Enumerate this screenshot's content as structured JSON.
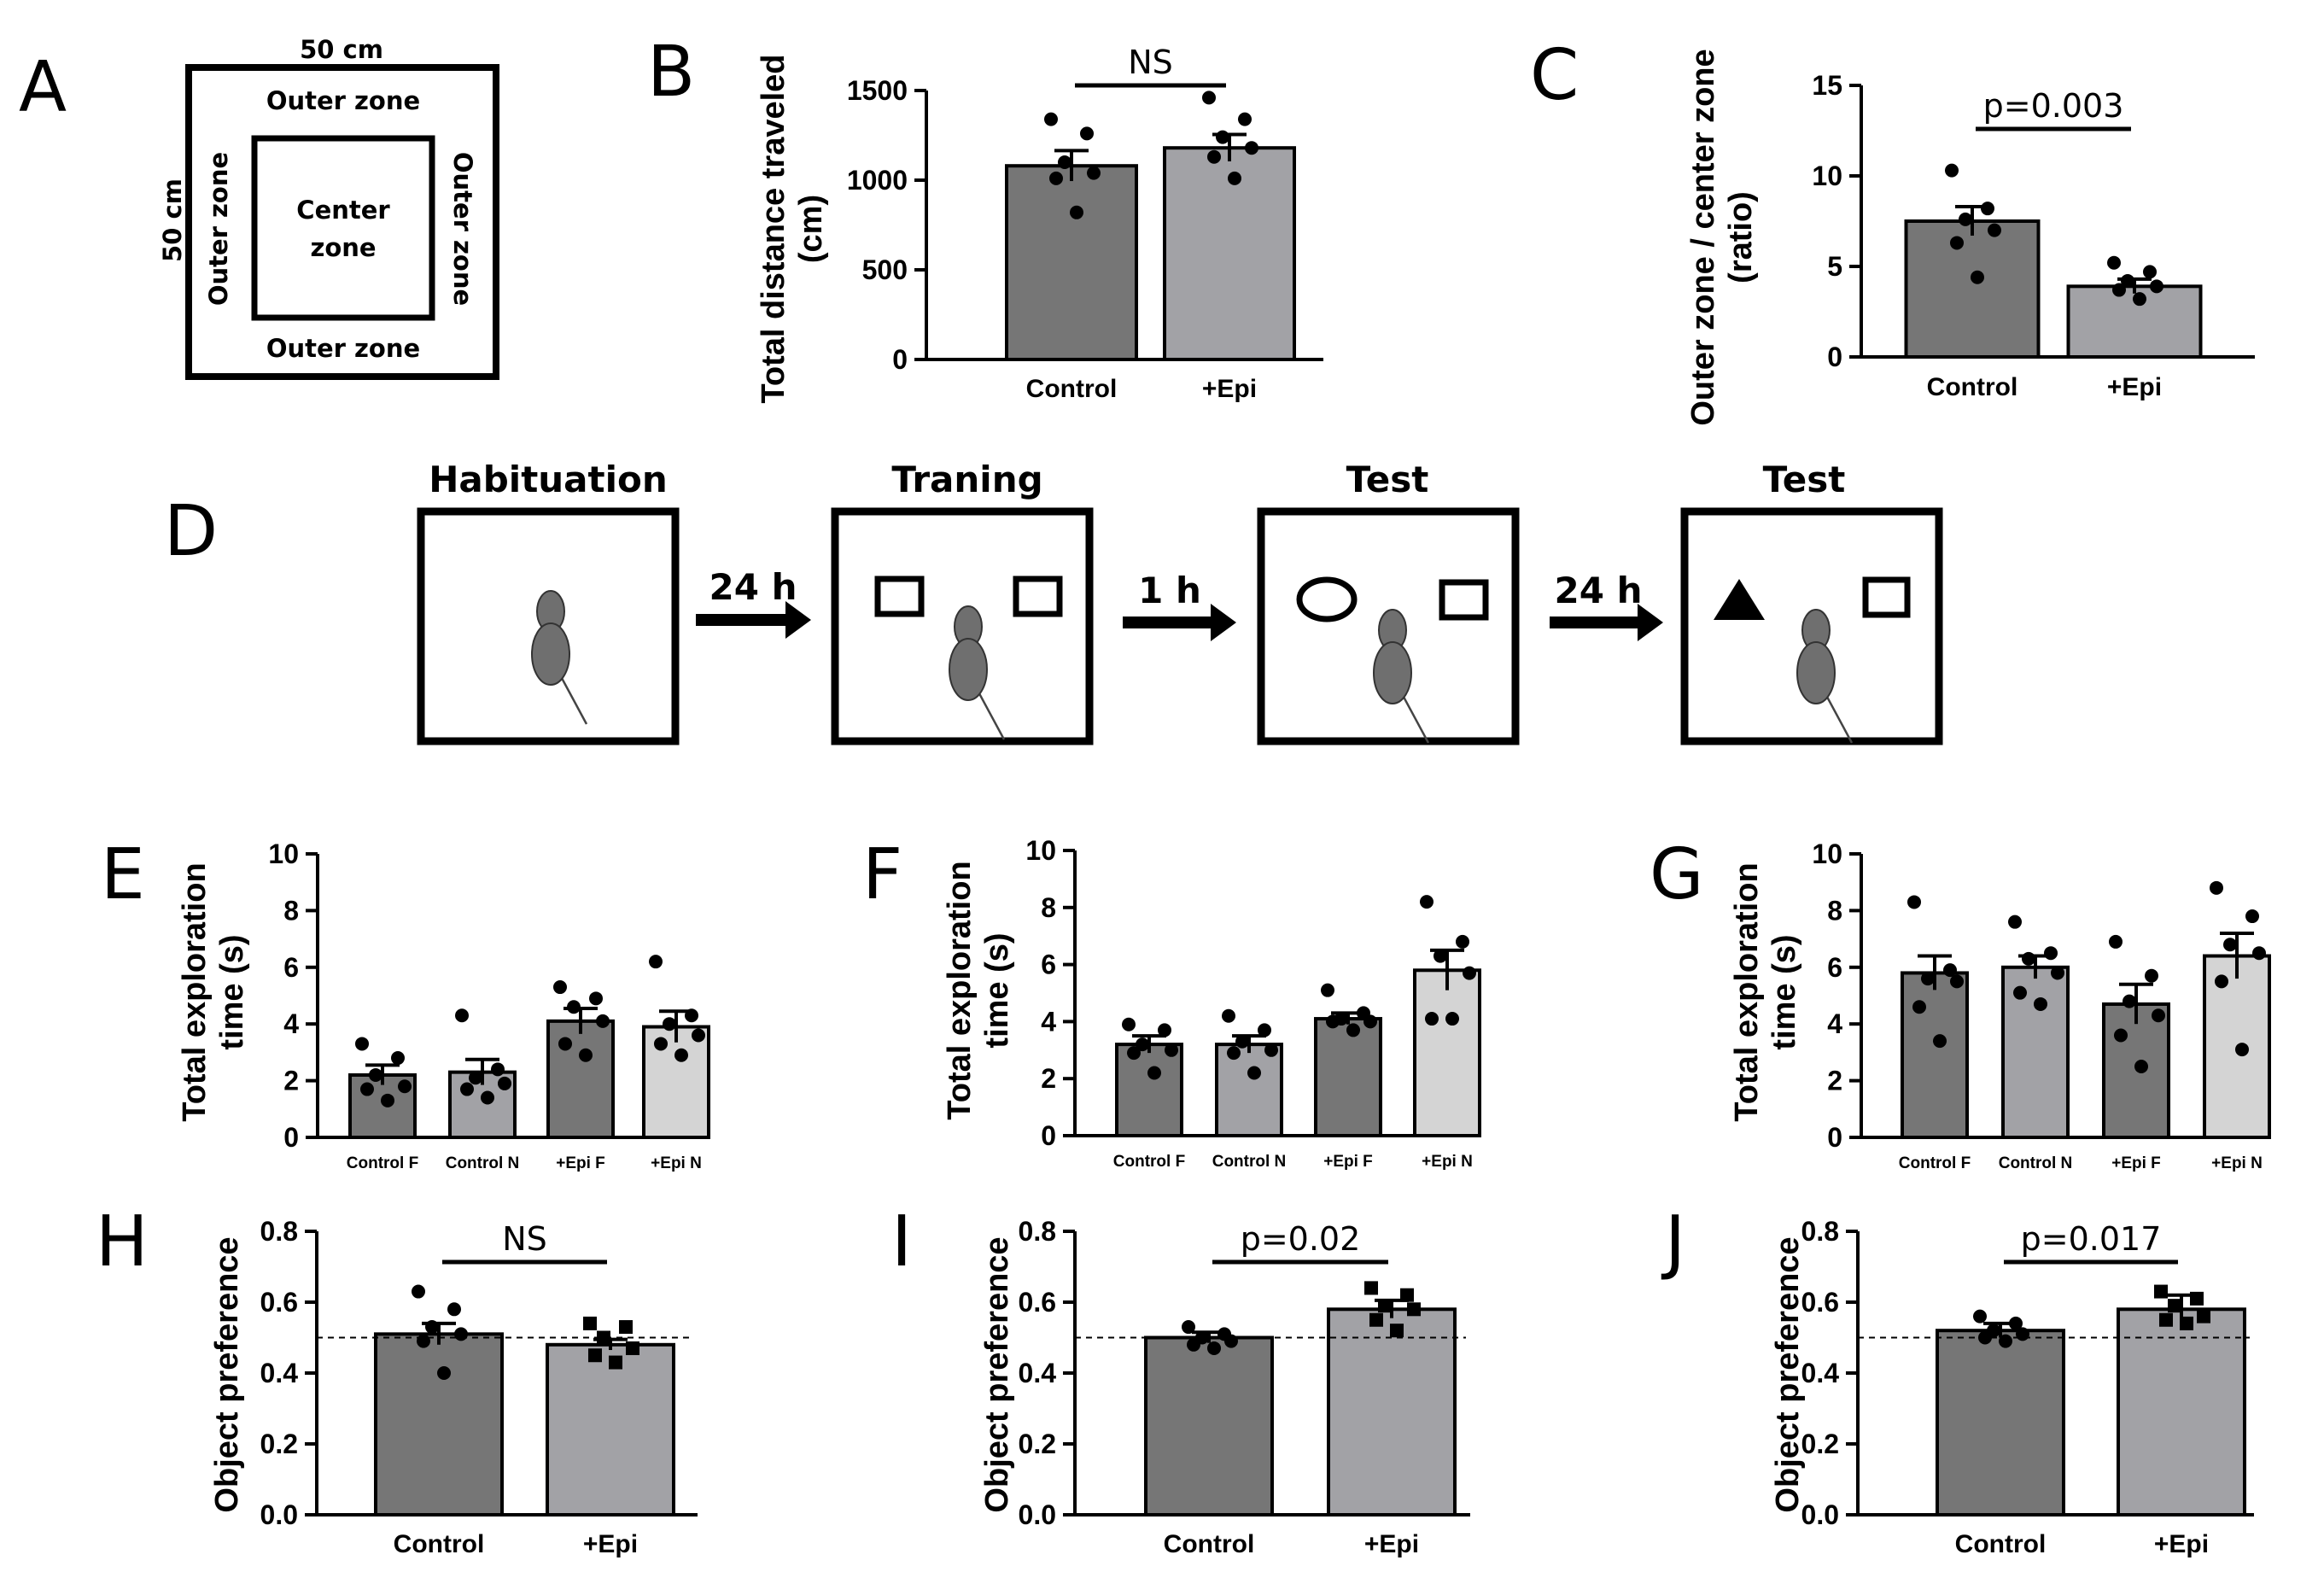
{
  "panel_labels": {
    "A": "A",
    "B": "B",
    "C": "C",
    "D": "D",
    "E": "E",
    "F": "F",
    "G": "G",
    "H": "H",
    "I": "I",
    "J": "J"
  },
  "panel_a": {
    "top_width": "50 cm",
    "side_height": "50 cm",
    "outer_top": "Outer zone",
    "outer_bottom": "Outer zone",
    "outer_left": "Outer zone",
    "outer_right": "Outer zone",
    "center_line1": "Center",
    "center_line2": "zone"
  },
  "panel_d": {
    "stages": [
      "Habituation",
      "Traning",
      "Test",
      "Test"
    ],
    "intervals": [
      "24 h",
      "1 h",
      "24 h"
    ]
  },
  "colors": {
    "dark_bar": "#767676",
    "mid_bar": "#a2a2a6",
    "light_bar": "#d4d4d4",
    "dot": "#000000"
  },
  "chart_data": [
    {
      "id": "B",
      "type": "bar",
      "categories": [
        "Control",
        "+Epi"
      ],
      "values": [
        1080,
        1180
      ],
      "errors": [
        85,
        75
      ],
      "points": [
        [
          1340,
          1260,
          1100,
          1040,
          1010,
          820
        ],
        [
          1460,
          1340,
          1240,
          1180,
          1130,
          1010
        ]
      ],
      "ylabel": "Total distance traveled (cm)",
      "ylim": [
        0,
        1500
      ],
      "yticks": [
        0,
        500,
        1000,
        1500
      ],
      "significance": "NS"
    },
    {
      "id": "C",
      "type": "bar",
      "categories": [
        "Control",
        "+Epi"
      ],
      "values": [
        7.5,
        3.9
      ],
      "errors": [
        0.8,
        0.4
      ],
      "points": [
        [
          10.3,
          8.2,
          7.6,
          7.0,
          6.3,
          4.4
        ],
        [
          5.2,
          4.7,
          4.2,
          3.9,
          3.7,
          3.2
        ]
      ],
      "ylabel": "Outer zone / center zone (ratio)",
      "ylim": [
        0,
        15
      ],
      "yticks": [
        0,
        5,
        10,
        15
      ],
      "significance": "p=0.003"
    },
    {
      "id": "E",
      "type": "bar",
      "categories": [
        "Control F",
        "Control N",
        "+Epi F",
        "+Epi N"
      ],
      "values": [
        2.2,
        2.3,
        4.1,
        3.9
      ],
      "errors": [
        0.35,
        0.45,
        0.45,
        0.55
      ],
      "points": [
        [
          3.3,
          2.8,
          2.2,
          1.8,
          1.7,
          1.3
        ],
        [
          4.3,
          2.4,
          2.1,
          1.9,
          1.7,
          1.4
        ],
        [
          5.3,
          4.9,
          4.6,
          4.1,
          3.3,
          2.9
        ],
        [
          6.2,
          4.3,
          4.0,
          3.6,
          3.3,
          2.9
        ]
      ],
      "ylabel": "Total exploration time (s)",
      "ylim": [
        0,
        10
      ],
      "yticks": [
        0,
        2,
        4,
        6,
        8,
        10
      ]
    },
    {
      "id": "F",
      "type": "bar",
      "categories": [
        "Control F",
        "Control N",
        "+Epi F",
        "+Epi N"
      ],
      "values": [
        3.2,
        3.2,
        4.1,
        5.8
      ],
      "errors": [
        0.3,
        0.3,
        0.2,
        0.7
      ],
      "points": [
        [
          3.9,
          3.7,
          3.2,
          3.0,
          2.9,
          2.2
        ],
        [
          4.2,
          3.7,
          3.3,
          3.0,
          2.9,
          2.2
        ],
        [
          5.1,
          4.3,
          4.1,
          4.0,
          4.0,
          3.7
        ],
        [
          8.2,
          6.8,
          6.3,
          5.7,
          4.1,
          4.1
        ]
      ],
      "ylabel": "Total exploration time (s)",
      "ylim": [
        0,
        10
      ],
      "yticks": [
        0,
        2,
        4,
        6,
        8,
        10
      ]
    },
    {
      "id": "G",
      "type": "bar",
      "categories": [
        "Control F",
        "Control N",
        "+Epi F",
        "+Epi N"
      ],
      "values": [
        5.8,
        6.0,
        4.7,
        6.4
      ],
      "errors": [
        0.6,
        0.4,
        0.7,
        0.8
      ],
      "points": [
        [
          8.3,
          5.9,
          5.6,
          5.5,
          4.6,
          3.4
        ],
        [
          7.6,
          6.5,
          6.3,
          5.8,
          5.1,
          4.7
        ],
        [
          6.9,
          5.7,
          4.8,
          4.3,
          3.6,
          2.5
        ],
        [
          8.8,
          7.8,
          6.8,
          6.5,
          5.5,
          3.1
        ]
      ],
      "ylabel": "Total exploration time (s)",
      "ylim": [
        0,
        10
      ],
      "yticks": [
        0,
        2,
        4,
        6,
        8,
        10
      ]
    },
    {
      "id": "H",
      "type": "bar",
      "categories": [
        "Control",
        "+Epi"
      ],
      "values": [
        0.51,
        0.48
      ],
      "errors": [
        0.03,
        0.015
      ],
      "points": [
        [
          0.63,
          0.58,
          0.53,
          0.51,
          0.49,
          0.4
        ],
        [
          0.54,
          0.53,
          0.5,
          0.47,
          0.45,
          0.43
        ]
      ],
      "ylabel": "Object preference",
      "ylim": [
        0,
        0.8
      ],
      "yticks": [
        0.0,
        0.2,
        0.4,
        0.6,
        0.8
      ],
      "reference_line": 0.5,
      "significance": "NS"
    },
    {
      "id": "I",
      "type": "bar",
      "categories": [
        "Control",
        "+Epi"
      ],
      "values": [
        0.5,
        0.58
      ],
      "errors": [
        0.015,
        0.025
      ],
      "points": [
        [
          0.53,
          0.51,
          0.5,
          0.49,
          0.48,
          0.47
        ],
        [
          0.64,
          0.62,
          0.59,
          0.58,
          0.55,
          0.52
        ]
      ],
      "ylabel": "Object preference",
      "ylim": [
        0,
        0.8
      ],
      "yticks": [
        0.0,
        0.2,
        0.4,
        0.6,
        0.8
      ],
      "reference_line": 0.5,
      "significance": "p=0.02"
    },
    {
      "id": "J",
      "type": "bar",
      "categories": [
        "Control",
        "+Epi"
      ],
      "values": [
        0.52,
        0.58
      ],
      "errors": [
        0.02,
        0.04
      ],
      "points": [
        [
          0.56,
          0.54,
          0.52,
          0.51,
          0.5,
          0.49
        ],
        [
          0.63,
          0.61,
          0.59,
          0.56,
          0.55,
          0.54
        ]
      ],
      "ylabel": "Object preference",
      "ylim": [
        0,
        0.8
      ],
      "yticks": [
        0.0,
        0.2,
        0.4,
        0.6,
        0.8
      ],
      "reference_line": 0.5,
      "significance": "p=0.017"
    }
  ]
}
